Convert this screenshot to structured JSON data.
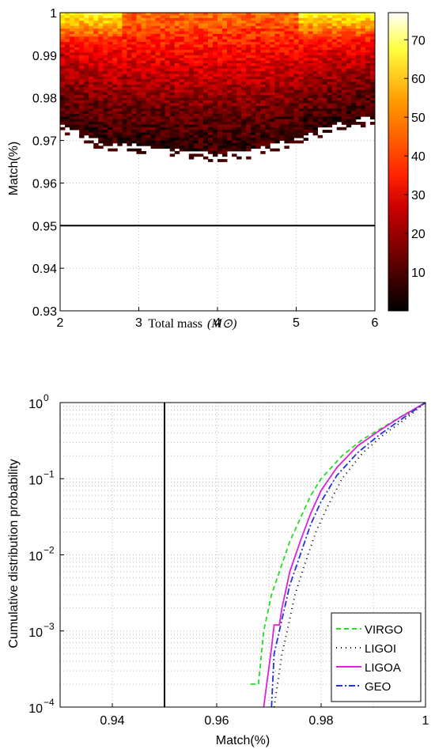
{
  "chart_data": [
    {
      "type": "heatmap",
      "xlabel": "Total mass",
      "xlabel_math": "(M⊙)",
      "ylabel": "Match(%)",
      "xlim": [
        2,
        6
      ],
      "ylim": [
        0.93,
        1.0
      ],
      "xticks": [
        "2",
        "3",
        "4",
        "5",
        "6"
      ],
      "yticks": [
        "0.93",
        "0.94",
        "0.95",
        "0.96",
        "0.97",
        "0.98",
        "0.99",
        "1"
      ],
      "colorbar": {
        "range": [
          0,
          77
        ],
        "ticks": [
          "10",
          "20",
          "30",
          "40",
          "50",
          "60",
          "70"
        ],
        "colormap": "hot"
      },
      "reference_line": {
        "y": 0.95,
        "color": "#000000"
      },
      "grid": true,
      "approx_lower_edge": [
        [
          2.0,
          0.974
        ],
        [
          2.5,
          0.97
        ],
        [
          3.0,
          0.969
        ],
        [
          3.5,
          0.968
        ],
        [
          4.0,
          0.967
        ],
        [
          4.5,
          0.968
        ],
        [
          5.0,
          0.971
        ],
        [
          5.5,
          0.974
        ],
        [
          6.0,
          0.976
        ]
      ],
      "density_note": ""
    },
    {
      "type": "line",
      "ylabel": "Cumulative distribution probability",
      "xlabel": "Match(%)",
      "xlim": [
        0.93,
        1.0
      ],
      "ylim_log10": [
        -4,
        0
      ],
      "yscale": "log",
      "xticks": [
        "0.94",
        "0.96",
        "0.98",
        "1"
      ],
      "yticks": [
        {
          "base": "10",
          "exp": "0"
        },
        {
          "base": "10",
          "exp": "−1"
        },
        {
          "base": "10",
          "exp": "−2"
        },
        {
          "base": "10",
          "exp": "−3"
        },
        {
          "base": "10",
          "exp": "−4"
        }
      ],
      "reference_line": {
        "x": 0.95,
        "color": "#000000"
      },
      "grid": true,
      "legend_position": "bottom-right",
      "series": [
        {
          "name": "VIRGO",
          "color": "#22dd22",
          "dash": "6,4",
          "points": [
            [
              0.9665,
              0.0002
            ],
            [
              0.968,
              0.0002
            ],
            [
              0.969,
              0.001
            ],
            [
              0.9705,
              0.003
            ],
            [
              0.972,
              0.006
            ],
            [
              0.974,
              0.015
            ],
            [
              0.976,
              0.03
            ],
            [
              0.978,
              0.06
            ],
            [
              0.98,
              0.1
            ],
            [
              0.984,
              0.2
            ],
            [
              0.988,
              0.33
            ],
            [
              0.992,
              0.48
            ],
            [
              0.996,
              0.7
            ],
            [
              1.0,
              1.0
            ]
          ]
        },
        {
          "name": "LIGOI",
          "color": "#000000",
          "dash": "1,5",
          "points": [
            [
              0.971,
              0.0001
            ],
            [
              0.9725,
              0.0005
            ],
            [
              0.9735,
              0.001
            ],
            [
              0.975,
              0.003
            ],
            [
              0.977,
              0.008
            ],
            [
              0.979,
              0.02
            ],
            [
              0.981,
              0.04
            ],
            [
              0.984,
              0.1
            ],
            [
              0.988,
              0.22
            ],
            [
              0.992,
              0.38
            ],
            [
              0.996,
              0.6
            ],
            [
              1.0,
              1.0
            ]
          ]
        },
        {
          "name": "LIGOA",
          "color": "#dd22dd",
          "dash": "",
          "points": [
            [
              0.969,
              0.0001
            ],
            [
              0.9705,
              0.0006
            ],
            [
              0.971,
              0.0012
            ],
            [
              0.972,
              0.0012
            ],
            [
              0.9725,
              0.002
            ],
            [
              0.974,
              0.006
            ],
            [
              0.976,
              0.015
            ],
            [
              0.978,
              0.035
            ],
            [
              0.98,
              0.07
            ],
            [
              0.983,
              0.14
            ],
            [
              0.987,
              0.27
            ],
            [
              0.991,
              0.42
            ],
            [
              0.995,
              0.63
            ],
            [
              1.0,
              1.0
            ]
          ]
        },
        {
          "name": "GEO",
          "color": "#2233dd",
          "dash": "8,3,2,3",
          "points": [
            [
              0.9705,
              0.0001
            ],
            [
              0.971,
              0.0005
            ],
            [
              0.972,
              0.001
            ],
            [
              0.974,
              0.004
            ],
            [
              0.976,
              0.01
            ],
            [
              0.978,
              0.025
            ],
            [
              0.98,
              0.05
            ],
            [
              0.983,
              0.11
            ],
            [
              0.987,
              0.22
            ],
            [
              0.991,
              0.37
            ],
            [
              0.995,
              0.58
            ],
            [
              1.0,
              1.0
            ]
          ]
        }
      ]
    }
  ]
}
